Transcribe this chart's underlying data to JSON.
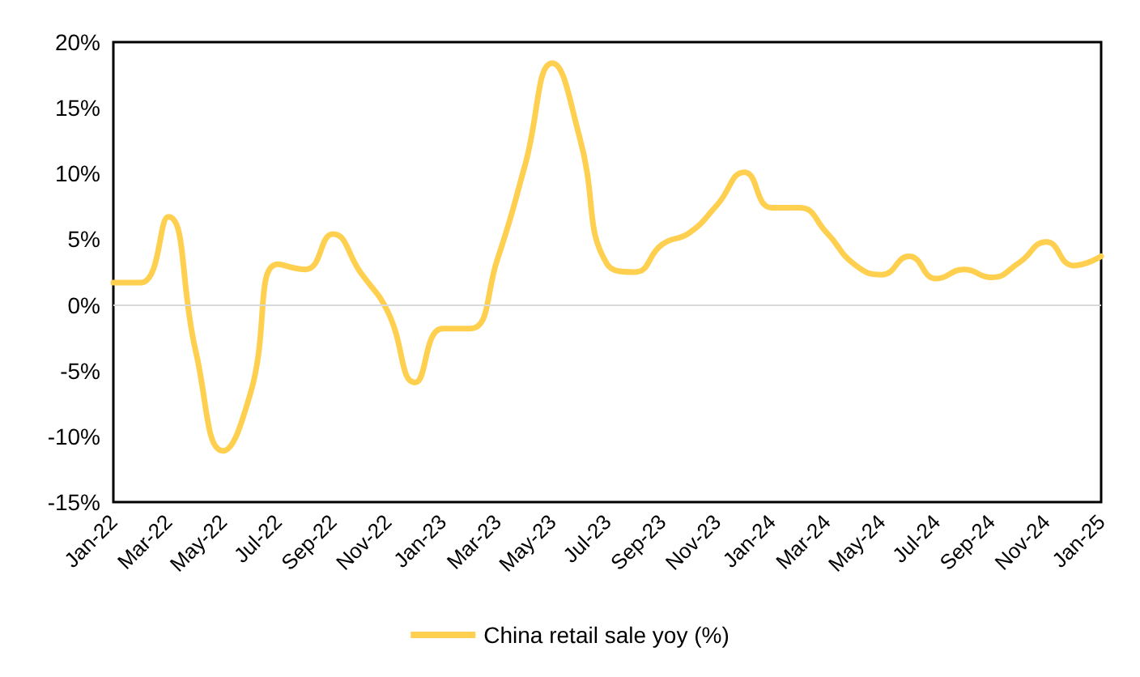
{
  "chart_data": {
    "type": "line",
    "categories": [
      "Jan-22",
      null,
      "Mar-22",
      null,
      "May-22",
      null,
      "Jul-22",
      null,
      "Sep-22",
      null,
      "Nov-22",
      null,
      "Jan-23",
      null,
      "Mar-23",
      null,
      "May-23",
      null,
      "Jul-23",
      null,
      "Sep-23",
      null,
      "Nov-23",
      null,
      "Jan-24",
      null,
      "Mar-24",
      null,
      "May-24",
      null,
      "Jul-24",
      null,
      "Sep-24",
      null,
      "Nov-24",
      null,
      "Jan-25"
    ],
    "series": [
      {
        "name": "China retail sale yoy (%)",
        "color": "#ffd04f",
        "values": [
          1.7,
          1.7,
          6.7,
          -3.5,
          -11.1,
          -6.7,
          3.1,
          2.7,
          5.4,
          2.5,
          -0.5,
          -5.9,
          -1.8,
          -1.8,
          3.5,
          10.6,
          18.4,
          12.7,
          3.1,
          2.5,
          4.6,
          5.5,
          7.6,
          10.1,
          7.4,
          7.4,
          5.5,
          3.1,
          2.3,
          3.7,
          2.0,
          2.7,
          2.1,
          3.2,
          4.8,
          3.0,
          3.7
        ]
      }
    ],
    "ylim": [
      -15,
      20
    ],
    "yticks": [
      {
        "value": -15,
        "label": "-15%"
      },
      {
        "value": -10,
        "label": "-10%"
      },
      {
        "value": -5,
        "label": "-5%"
      },
      {
        "value": 0,
        "label": "0%"
      },
      {
        "value": 5,
        "label": "5%"
      },
      {
        "value": 10,
        "label": "10%"
      },
      {
        "value": 15,
        "label": "15%"
      },
      {
        "value": 20,
        "label": "20%"
      }
    ],
    "ref_lines": [
      {
        "axis": "y",
        "value": 0,
        "color": "#d9d9d9"
      }
    ],
    "legend": "bottom",
    "grid": false,
    "marker": "none",
    "line_style": "solid"
  }
}
